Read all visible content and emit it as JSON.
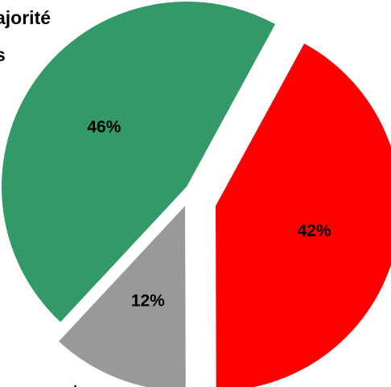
{
  "chart_data": {
    "type": "pie",
    "title": "",
    "slices": [
      {
        "label": "46%",
        "value": 46,
        "color": "#339966"
      },
      {
        "label": "42%",
        "value": 42,
        "color": "#ff0000"
      },
      {
        "label": "12%",
        "value": 12,
        "color": "#999999"
      }
    ],
    "exploded": true,
    "text_fragments": {
      "top_left_line1": "ajorité",
      "top_left_line2": "s",
      "bottom_left": "nnoncent"
    }
  }
}
